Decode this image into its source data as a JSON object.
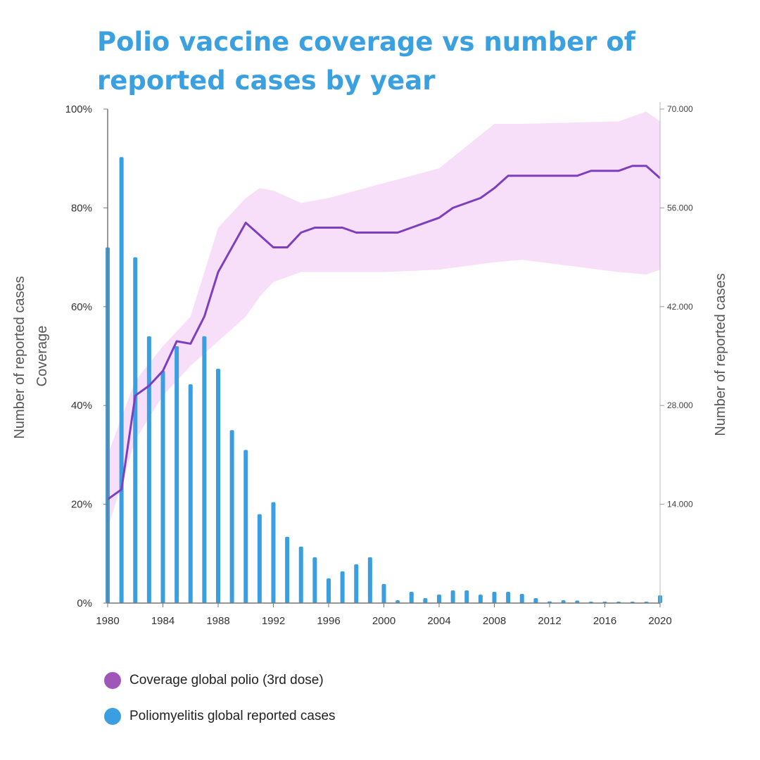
{
  "title": "Polio vaccine coverage vs number of reported cases by year",
  "legend": {
    "coverage_label": "Coverage global polio (3rd dose)",
    "cases_label": "Poliomyelitis global reported cases"
  },
  "colors": {
    "title": "#3aa0e0",
    "coverage_line": "#7e3ec0",
    "coverage_band": "#f7dff9",
    "coverage_dot": "#a056b8",
    "bars": "#3a9ee0",
    "axis": "#777777"
  },
  "chart_data": {
    "type": "bar+line",
    "title": "Polio vaccine coverage vs number of reported cases by year",
    "left_axis": {
      "ylabel_line1": "Number of reported cases",
      "ylabel_line2": "Coverage",
      "ylim": [
        0,
        100
      ],
      "ticks": [
        0,
        20,
        40,
        60,
        80,
        100
      ],
      "tick_labels": [
        "0%",
        "20%",
        "40%",
        "60%",
        "80%",
        "100%"
      ]
    },
    "right_axis": {
      "ylabel": "Number of reported cases",
      "ylim": [
        0,
        70000
      ],
      "ticks": [
        14000,
        28000,
        42000,
        56000,
        70000
      ],
      "tick_labels": [
        "14.000",
        "28.000",
        "42.000",
        "56.000",
        "70.000"
      ]
    },
    "x_axis": {
      "xlim": [
        1980,
        2020
      ],
      "ticks": [
        1980,
        1984,
        1988,
        1992,
        1996,
        2000,
        2004,
        2008,
        2012,
        2016,
        2020
      ],
      "tick_labels": [
        "1980",
        "1984",
        "1988",
        "1992",
        "1996",
        "2000",
        "2004",
        "2008",
        "2012",
        "2016",
        "2020"
      ]
    },
    "series": [
      {
        "name": "Coverage global polio (3rd dose)",
        "kind": "line",
        "axis": "left",
        "x": [
          1980,
          1981,
          1982,
          1983,
          1984,
          1985,
          1986,
          1987,
          1988,
          1989,
          1990,
          1991,
          1992,
          1993,
          1994,
          1995,
          1996,
          1997,
          1998,
          1999,
          2000,
          2001,
          2002,
          2003,
          2004,
          2005,
          2006,
          2007,
          2008,
          2009,
          2010,
          2011,
          2012,
          2013,
          2014,
          2015,
          2016,
          2017,
          2018,
          2019,
          2020
        ],
        "values": [
          21,
          23,
          42,
          44,
          47,
          53,
          52.5,
          58,
          67,
          72,
          77,
          74.5,
          72,
          72,
          75,
          76,
          76,
          76,
          75,
          75,
          75,
          75,
          76,
          77,
          78,
          80,
          81,
          82,
          84,
          86.5,
          86.5,
          86.5,
          86.5,
          86.5,
          86.5,
          87.5,
          87.5,
          87.5,
          88.5,
          88.5,
          86
        ]
      },
      {
        "name": "Coverage range",
        "kind": "band",
        "axis": "left",
        "x": [
          1980,
          1982,
          1984,
          1986,
          1988,
          1990,
          1991,
          1992,
          1994,
          1996,
          2000,
          2004,
          2008,
          2010,
          2017,
          2019,
          2020
        ],
        "low": [
          15,
          33,
          42,
          48,
          53,
          58,
          62,
          65,
          67,
          67,
          67,
          67.5,
          69,
          69.5,
          67,
          66.5,
          67.5
        ],
        "high": [
          30,
          45,
          52,
          58,
          76,
          82,
          84,
          83.5,
          81,
          82,
          85,
          88,
          97,
          97,
          97.5,
          99.5,
          97.5
        ]
      },
      {
        "name": "Poliomyelitis global reported cases",
        "kind": "bar",
        "axis": "right",
        "x": [
          1980,
          1981,
          1982,
          1983,
          1984,
          1985,
          1986,
          1987,
          1988,
          1989,
          1990,
          1991,
          1992,
          1993,
          1994,
          1995,
          1996,
          1997,
          1998,
          1999,
          2000,
          2001,
          2002,
          2003,
          2004,
          2005,
          2006,
          2007,
          2008,
          2009,
          2010,
          2011,
          2012,
          2013,
          2014,
          2015,
          2016,
          2017,
          2018,
          2019,
          2020
        ],
        "values": [
          50400,
          63200,
          49000,
          37800,
          32900,
          36400,
          31000,
          37800,
          33200,
          24500,
          21700,
          12600,
          14300,
          9400,
          8000,
          6500,
          3500,
          4500,
          5500,
          6500,
          2700,
          400,
          1600,
          700,
          1200,
          1800,
          1800,
          1200,
          1600,
          1600,
          1300,
          700,
          240,
          400,
          360,
          110,
          40,
          20,
          35,
          180,
          1100
        ]
      }
    ]
  }
}
